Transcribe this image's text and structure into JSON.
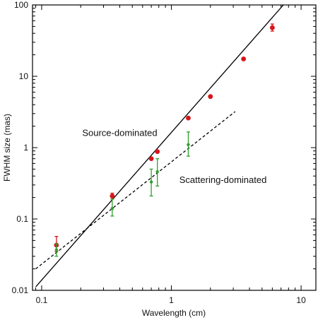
{
  "chart_data": {
    "type": "scatter",
    "title": "",
    "xlabel": "Wavelength (cm)",
    "ylabel": "FWHM size (mas)",
    "xscale": "log",
    "yscale": "log",
    "xlim": [
      0.085,
      13
    ],
    "ylim": [
      0.01,
      100
    ],
    "grid": false,
    "x_ticks": [
      {
        "value": 0.1,
        "label": "0.1"
      },
      {
        "value": 1,
        "label": "1"
      },
      {
        "value": 10,
        "label": "10"
      }
    ],
    "y_ticks": [
      {
        "value": 0.01,
        "label": "0.01"
      },
      {
        "value": 0.1,
        "label": "0.1"
      },
      {
        "value": 1,
        "label": "1"
      },
      {
        "value": 10,
        "label": "10"
      },
      {
        "value": 100,
        "label": "100"
      }
    ],
    "annotations": [
      {
        "text": "Source-dominated",
        "x": 0.4,
        "y": 1.45
      },
      {
        "text": "Scattering-dominated",
        "x": 2.5,
        "y": 0.32
      }
    ],
    "series": [
      {
        "color": "#d7161b",
        "marker": "circle",
        "points": [
          {
            "x": 0.13,
            "y": 0.043,
            "err_low": 0.008,
            "err_high": 0.014
          },
          {
            "x": 0.35,
            "y": 0.21,
            "err_low": 0.02,
            "err_high": 0.02
          },
          {
            "x": 0.7,
            "y": 0.7
          },
          {
            "x": 0.78,
            "y": 0.88
          },
          {
            "x": 1.35,
            "y": 2.6
          },
          {
            "x": 2.0,
            "y": 5.2
          },
          {
            "x": 3.6,
            "y": 17.5
          },
          {
            "x": 6.0,
            "y": 48,
            "err_low": 5,
            "err_high": 6
          }
        ]
      },
      {
        "color": "#2ea02c",
        "marker": "small-dot",
        "points": [
          {
            "x": 0.13,
            "y": 0.037,
            "err_low": 0.007,
            "err_high": 0.008
          },
          {
            "x": 0.35,
            "y": 0.14,
            "err_low": 0.03,
            "err_high": 0.05
          },
          {
            "x": 0.7,
            "y": 0.33,
            "err_low": 0.12,
            "err_high": 0.17
          },
          {
            "x": 0.78,
            "y": 0.46,
            "err_low": 0.17,
            "err_high": 0.24
          },
          {
            "x": 1.35,
            "y": 1.1,
            "err_low": 0.34,
            "err_high": 0.56
          }
        ]
      }
    ],
    "lines": [
      {
        "style": "solid",
        "points": [
          [
            0.09,
            0.0112
          ],
          [
            7.3,
            100
          ]
        ]
      },
      {
        "style": "dashed",
        "points": [
          [
            0.09,
            0.02
          ],
          [
            3.1,
            3.2
          ]
        ]
      }
    ]
  }
}
